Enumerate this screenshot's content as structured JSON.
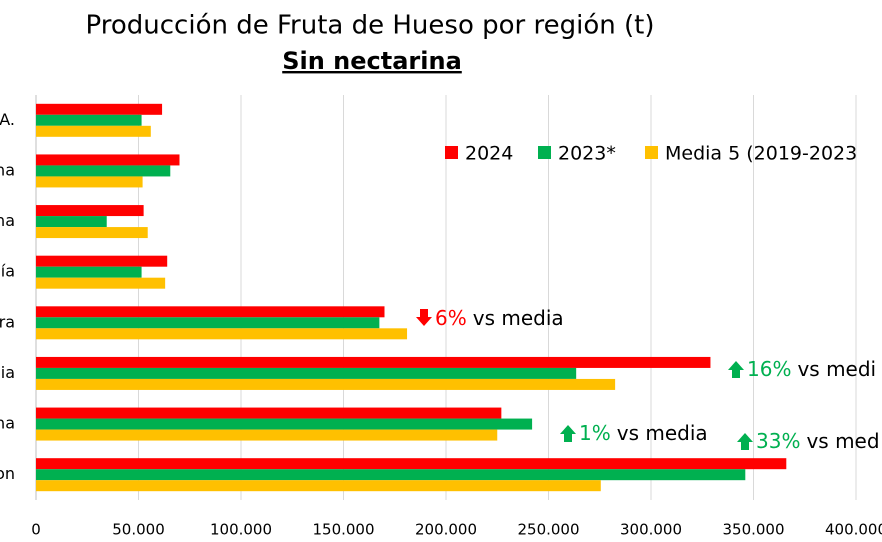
{
  "chart_data": {
    "type": "barh",
    "title": "Producción de Fruta de Hueso por región (t)",
    "subtitle": "Sin nectarina",
    "categories": [
      "A.",
      "na",
      "na",
      "ía",
      "ra",
      "ia",
      "na",
      "on"
    ],
    "series": [
      {
        "name": "2024",
        "color": "#ff0000",
        "values": [
          61500,
          70000,
          52500,
          64000,
          170000,
          329000,
          227000,
          366000
        ]
      },
      {
        "name": "2023*",
        "color": "#00b050",
        "values": [
          51500,
          65500,
          34500,
          51500,
          167500,
          263500,
          242000,
          346000
        ]
      },
      {
        "name": "Media 5 (2019-2023",
        "color": "#ffc000",
        "values": [
          56000,
          52000,
          54500,
          63000,
          181000,
          282500,
          225000,
          275500
        ]
      }
    ],
    "xlim": [
      0,
      400000
    ],
    "xticks": [
      0,
      {
        "value": 50000,
        "label": "50.000"
      },
      {
        "value": 100000,
        "label": "100.000"
      },
      {
        "value": 150000,
        "label": "150.000"
      },
      {
        "value": 200000,
        "label": "200.000"
      },
      {
        "value": 250000,
        "label": "250.000"
      },
      {
        "value": 300000,
        "label": "300.000"
      },
      {
        "value": 350000,
        "label": "350.000"
      },
      {
        "value": 400000,
        "label": "400.000"
      }
    ],
    "grid": true,
    "legend": "top-right",
    "annotations": [
      {
        "pct": "6%",
        "text": "vs media",
        "arrow": "down",
        "color": "#ff0000"
      },
      {
        "pct": "16%",
        "text": "vs medi",
        "arrow": "up",
        "color": "#00b050"
      },
      {
        "pct": "1%",
        "text": "vs media",
        "arrow": "up",
        "color": "#00b050"
      },
      {
        "pct": "33%",
        "text": "vs med",
        "arrow": "up",
        "color": "#00b050"
      }
    ]
  }
}
